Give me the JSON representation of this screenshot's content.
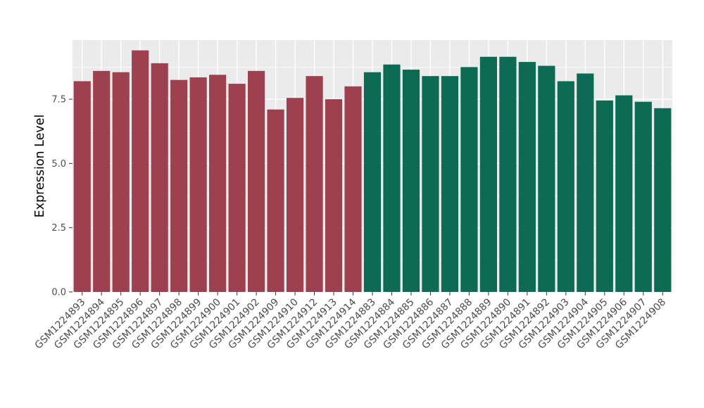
{
  "figure": {
    "background": "#FFFFFF",
    "panel_background": "#EBEBEB",
    "grid_color": "#FFFFFF",
    "tick_color": "#333333",
    "axis_text_color": "#4D4D4D",
    "axis_title_color": "#000000"
  },
  "chart_data": {
    "type": "bar",
    "title": "",
    "xlabel": "",
    "ylabel": "Expression Level",
    "ylim": [
      0,
      9.8
    ],
    "yticks": [
      0,
      2.5,
      5,
      7.5
    ],
    "ytick_labels": [
      "0.0",
      "2.5",
      "5.0",
      "7.5"
    ],
    "yminor": [
      1.25,
      3.75,
      6.25,
      8.75
    ],
    "grid": "on",
    "legend_position": "none",
    "bar_width_frac": 0.88,
    "palette": {
      "A": "#9D4150",
      "B": "#0C6B52"
    },
    "categories": [
      "GSM1224893",
      "GSM1224894",
      "GSM1224895",
      "GSM1224896",
      "GSM1224897",
      "GSM1224898",
      "GSM1224899",
      "GSM1224900",
      "GSM1224901",
      "GSM1224902",
      "GSM1224909",
      "GSM1224910",
      "GSM1224912",
      "GSM1224913",
      "GSM1224914",
      "GSM1224883",
      "GSM1224884",
      "GSM1224885",
      "GSM1224886",
      "GSM1224887",
      "GSM1224888",
      "GSM1224889",
      "GSM1224890",
      "GSM1224891",
      "GSM1224892",
      "GSM1224903",
      "GSM1224904",
      "GSM1224905",
      "GSM1224906",
      "GSM1224907",
      "GSM1224908"
    ],
    "values": [
      8.2,
      8.6,
      8.55,
      9.4,
      8.9,
      8.25,
      8.35,
      8.45,
      8.1,
      8.6,
      7.1,
      7.55,
      8.4,
      7.5,
      8.0,
      8.55,
      8.85,
      8.65,
      8.4,
      8.4,
      8.75,
      9.15,
      9.15,
      8.95,
      8.8,
      8.2,
      8.5,
      7.45,
      7.65,
      7.4,
      7.15
    ],
    "group": [
      "A",
      "A",
      "A",
      "A",
      "A",
      "A",
      "A",
      "A",
      "A",
      "A",
      "A",
      "A",
      "A",
      "A",
      "A",
      "B",
      "B",
      "B",
      "B",
      "B",
      "B",
      "B",
      "B",
      "B",
      "B",
      "B",
      "B",
      "B",
      "B",
      "B",
      "B"
    ]
  }
}
